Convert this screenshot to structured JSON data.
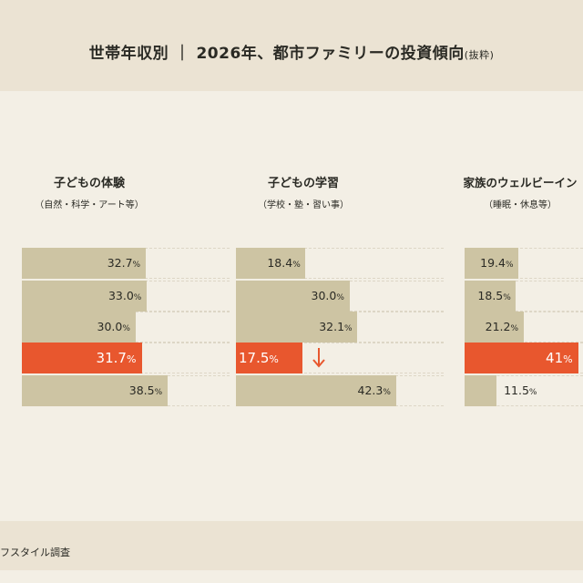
{
  "title": {
    "main": "世帯年収別 ｜ 2026年、都市ファミリーの投資傾向",
    "suffix": "(抜粋)"
  },
  "colors": {
    "bar": "#cdc4a3",
    "highlight": "#e8572e",
    "background": "#f3efe5",
    "band": "#ebe3d3"
  },
  "chart_data": {
    "type": "bar",
    "orientation": "horizontal",
    "unit": "%",
    "panels": [
      {
        "title": "子どもの体験",
        "subtitle": "（自然・科学・アート等）",
        "values": [
          32.7,
          33.0,
          30.0,
          31.7,
          38.5
        ],
        "labels": [
          "32.7",
          "33.0",
          "30.0",
          "31.7",
          "38.5"
        ],
        "highlight_index": 3
      },
      {
        "title": "子どもの学習",
        "subtitle": "（学校・塾・習い事）",
        "values": [
          18.4,
          30.0,
          32.1,
          17.5,
          42.3
        ],
        "labels": [
          "18.4",
          "30.0",
          "32.1",
          "17.5",
          "42.3"
        ],
        "highlight_index": 3,
        "annotation": "down-arrow"
      },
      {
        "title": "家族のウェルビーイン",
        "subtitle": "（睡眠・休息等）",
        "values": [
          19.4,
          18.5,
          21.2,
          41,
          11.5
        ],
        "labels": [
          "19.4",
          "18.5",
          "21.2",
          "41",
          "11.5"
        ],
        "highlight_index": 3
      }
    ]
  },
  "footer": {
    "source": "フスタイル調査"
  }
}
